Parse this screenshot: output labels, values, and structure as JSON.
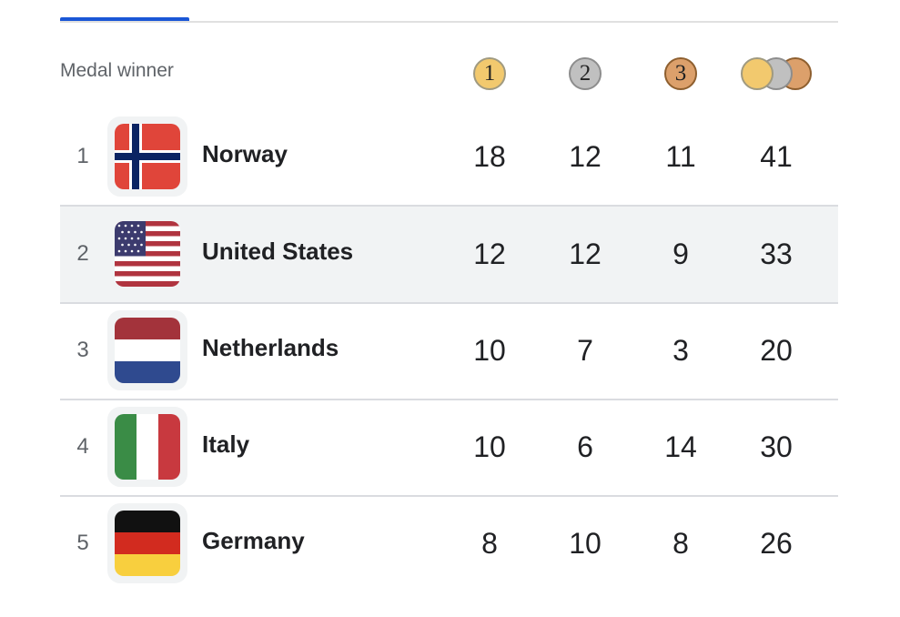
{
  "header": {
    "label": "Medal winner",
    "gold": "1",
    "silver": "2",
    "bronze": "3"
  },
  "colors": {
    "tab_indicator": "#1a57d6",
    "gold": "#f2c96e",
    "silver": "#c0c0c0",
    "bronze": "#dca06b",
    "alt_row": "#f1f3f4"
  },
  "rows": [
    {
      "rank": "1",
      "country": "Norway",
      "flag": "norway-flag",
      "gold": "18",
      "silver": "12",
      "bronze": "11",
      "total": "41"
    },
    {
      "rank": "2",
      "country": "United States",
      "flag": "usa-flag",
      "gold": "12",
      "silver": "12",
      "bronze": "9",
      "total": "33"
    },
    {
      "rank": "3",
      "country": "Netherlands",
      "flag": "netherlands-flag",
      "gold": "10",
      "silver": "7",
      "bronze": "3",
      "total": "20"
    },
    {
      "rank": "4",
      "country": "Italy",
      "flag": "italy-flag",
      "gold": "10",
      "silver": "6",
      "bronze": "14",
      "total": "30"
    },
    {
      "rank": "5",
      "country": "Germany",
      "flag": "germany-flag",
      "gold": "8",
      "silver": "10",
      "bronze": "8",
      "total": "26"
    }
  ]
}
